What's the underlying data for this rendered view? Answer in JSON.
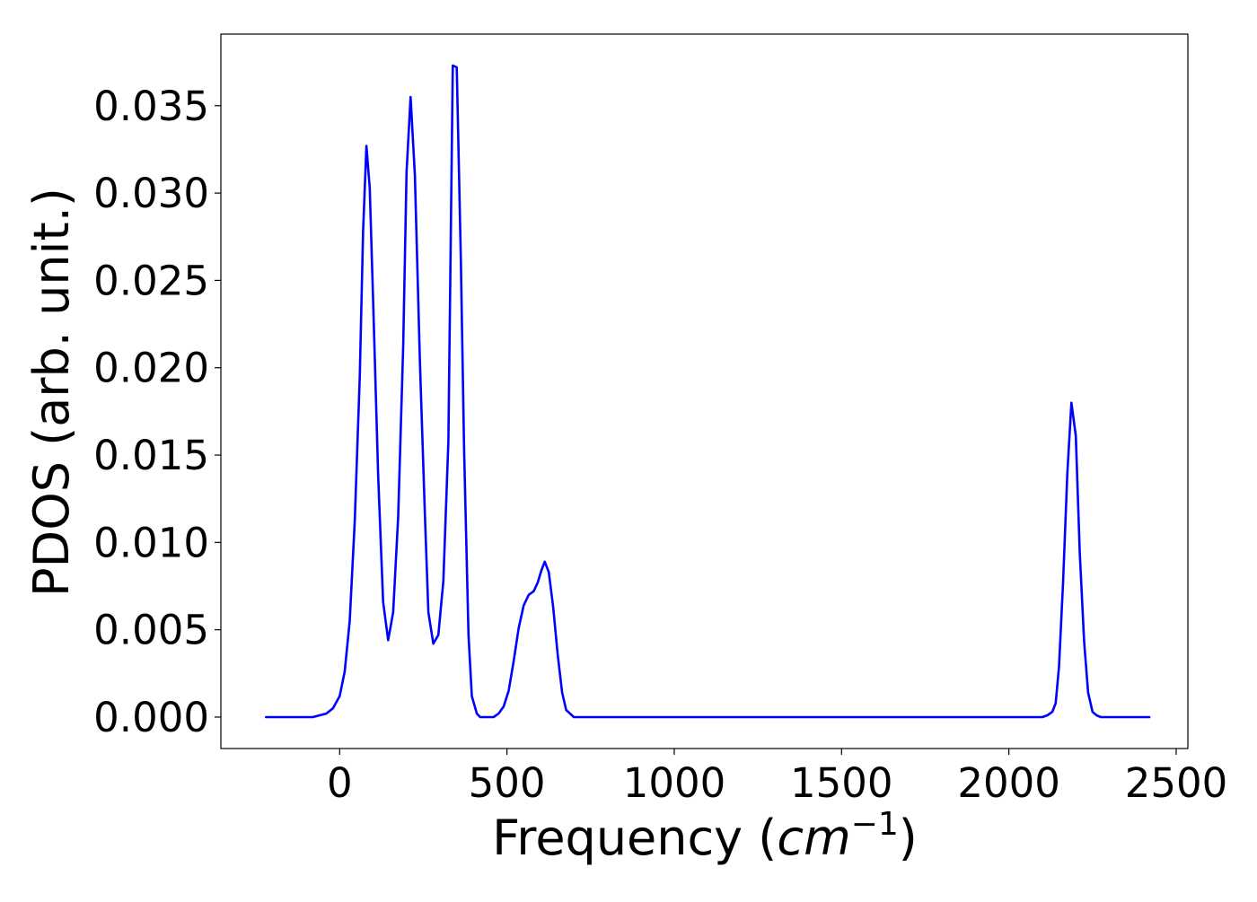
{
  "chart_data": {
    "type": "line",
    "title": "",
    "xlabel_prefix": "Frequency (",
    "xlabel_math_base": "cm",
    "xlabel_math_sup": "−1",
    "xlabel_suffix": ")",
    "ylabel": "PDOS (arb. unit.)",
    "xlim": [
      -355,
      2535
    ],
    "ylim": [
      -0.0018,
      0.0391
    ],
    "xticks": [
      0,
      500,
      1000,
      1500,
      2000,
      2500
    ],
    "xtick_labels": [
      "0",
      "500",
      "1000",
      "1500",
      "2000",
      "2500"
    ],
    "yticks": [
      0.0,
      0.005,
      0.01,
      0.015,
      0.02,
      0.025,
      0.03,
      0.035
    ],
    "ytick_labels": [
      "0.000",
      "0.005",
      "0.010",
      "0.015",
      "0.020",
      "0.025",
      "0.030",
      "0.035"
    ],
    "grid": false,
    "line_color": "#0000ff",
    "series": [
      {
        "x": [
          -220,
          -100,
          -80,
          -60,
          -40,
          -20,
          0,
          15,
          30,
          45,
          60,
          70,
          80,
          90,
          100,
          115,
          130,
          145,
          160,
          175,
          190,
          200,
          212,
          225,
          240,
          255,
          265,
          280,
          295,
          310,
          325,
          338,
          350,
          362,
          372,
          385,
          395,
          410,
          420,
          440,
          460,
          475,
          490,
          505,
          520,
          535,
          550,
          565,
          580,
          592,
          603,
          613,
          625,
          638,
          652,
          665,
          677,
          700,
          750,
          1000,
          1500,
          2000,
          2100,
          2115,
          2130,
          2140,
          2150,
          2162,
          2175,
          2187,
          2200,
          2212,
          2225,
          2237,
          2250,
          2262,
          2275,
          2300,
          2420
        ],
        "y": [
          0.0,
          0.0,
          0.0,
          0.0001,
          0.0002,
          0.0005,
          0.0012,
          0.0026,
          0.0055,
          0.0112,
          0.0195,
          0.0278,
          0.0327,
          0.0303,
          0.0238,
          0.0138,
          0.0066,
          0.0044,
          0.006,
          0.0115,
          0.0213,
          0.0312,
          0.0355,
          0.031,
          0.0203,
          0.0115,
          0.006,
          0.0042,
          0.0047,
          0.0078,
          0.0158,
          0.0373,
          0.0372,
          0.0264,
          0.0153,
          0.0047,
          0.0012,
          0.0002,
          0.0,
          0.0,
          0.0,
          0.0002,
          0.0006,
          0.0015,
          0.0032,
          0.0051,
          0.0064,
          0.007,
          0.0072,
          0.0077,
          0.0084,
          0.0089,
          0.0083,
          0.0063,
          0.0035,
          0.0014,
          0.0004,
          0.0,
          0.0,
          0.0,
          0.0,
          0.0,
          0.0,
          0.0001,
          0.0003,
          0.0008,
          0.0029,
          0.0077,
          0.014,
          0.018,
          0.0161,
          0.0094,
          0.0043,
          0.0014,
          0.0003,
          0.0001,
          0.0,
          0.0,
          0.0
        ]
      }
    ]
  }
}
